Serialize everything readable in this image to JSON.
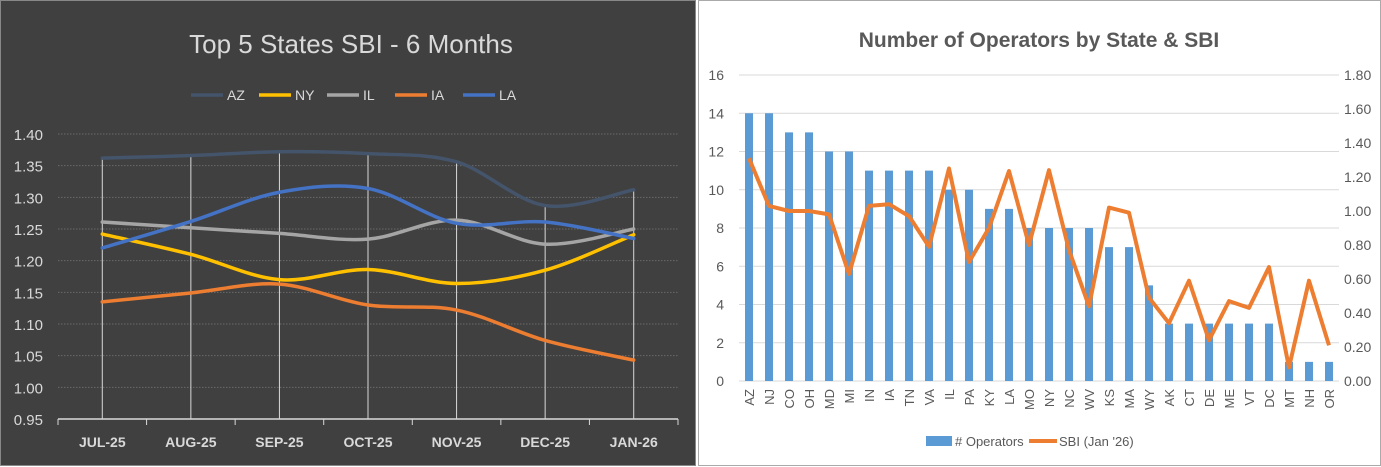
{
  "chart_data": [
    {
      "type": "line",
      "title": "Top 5 States SBI - 6 Months",
      "background": "#404040",
      "legend": "top",
      "categories": [
        "JUL-25",
        "AUG-25",
        "SEP-25",
        "OCT-25",
        "NOV-25",
        "DEC-25",
        "JAN-26"
      ],
      "ylim": [
        0.95,
        1.4
      ],
      "yticks": [
        "0.95",
        "1.00",
        "1.05",
        "1.10",
        "1.15",
        "1.20",
        "1.25",
        "1.30",
        "1.35",
        "1.40"
      ],
      "grid": true,
      "smooth": true,
      "series": [
        {
          "name": "AZ",
          "color": "#44546A",
          "values": [
            1.362,
            1.366,
            1.372,
            1.369,
            1.356,
            1.287,
            1.312
          ]
        },
        {
          "name": "NY",
          "color": "#FFC000",
          "values": [
            1.242,
            1.21,
            1.17,
            1.186,
            1.164,
            1.185,
            1.241
          ]
        },
        {
          "name": "IL",
          "color": "#A5A5A5",
          "values": [
            1.261,
            1.252,
            1.243,
            1.234,
            1.264,
            1.226,
            1.25
          ]
        },
        {
          "name": "IA",
          "color": "#ED7D31",
          "values": [
            1.135,
            1.149,
            1.163,
            1.13,
            1.122,
            1.074,
            1.043
          ]
        },
        {
          "name": "LA",
          "color": "#4472C4",
          "values": [
            1.22,
            1.262,
            1.308,
            1.314,
            1.259,
            1.261,
            1.235
          ]
        }
      ]
    },
    {
      "type": "bar+line",
      "title": "Number of Operators by State & SBI",
      "legend": "bottom",
      "grid": true,
      "categories": [
        "AZ",
        "NJ",
        "CO",
        "OH",
        "MD",
        "MI",
        "IN",
        "IA",
        "TN",
        "VA",
        "IL",
        "PA",
        "KY",
        "LA",
        "MO",
        "NY",
        "NC",
        "WV",
        "KS",
        "MA",
        "WY",
        "AK",
        "CT",
        "DE",
        "ME",
        "VT",
        "DC",
        "MT",
        "NH",
        "OR"
      ],
      "ylim": [
        0,
        16
      ],
      "yticks": [
        "0",
        "2",
        "4",
        "6",
        "8",
        "10",
        "12",
        "14",
        "16"
      ],
      "y2lim": [
        0,
        1.8
      ],
      "y2ticks": [
        "0.00",
        "0.20",
        "0.40",
        "0.60",
        "0.80",
        "1.00",
        "1.20",
        "1.40",
        "1.60",
        "1.80"
      ],
      "series": [
        {
          "name": "# Operators",
          "type": "bar",
          "axis": "left",
          "color": "#5B9BD5",
          "values": [
            14,
            14,
            13,
            13,
            12,
            12,
            11,
            11,
            11,
            11,
            10,
            10,
            9,
            9,
            8,
            8,
            8,
            8,
            7,
            7,
            5,
            3,
            3,
            3,
            3,
            3,
            3,
            1,
            1,
            1
          ]
        },
        {
          "name": "SBI (Jan '26)",
          "type": "line",
          "axis": "right",
          "color": "#ED7D31",
          "values": [
            1.31,
            1.03,
            1.0,
            1.0,
            0.98,
            0.63,
            1.03,
            1.04,
            0.97,
            0.79,
            1.25,
            0.7,
            0.9,
            1.235,
            0.8,
            1.24,
            0.77,
            0.44,
            1.02,
            0.99,
            0.49,
            0.34,
            0.59,
            0.24,
            0.47,
            0.43,
            0.67,
            0.08,
            0.59,
            0.21
          ]
        }
      ]
    }
  ]
}
